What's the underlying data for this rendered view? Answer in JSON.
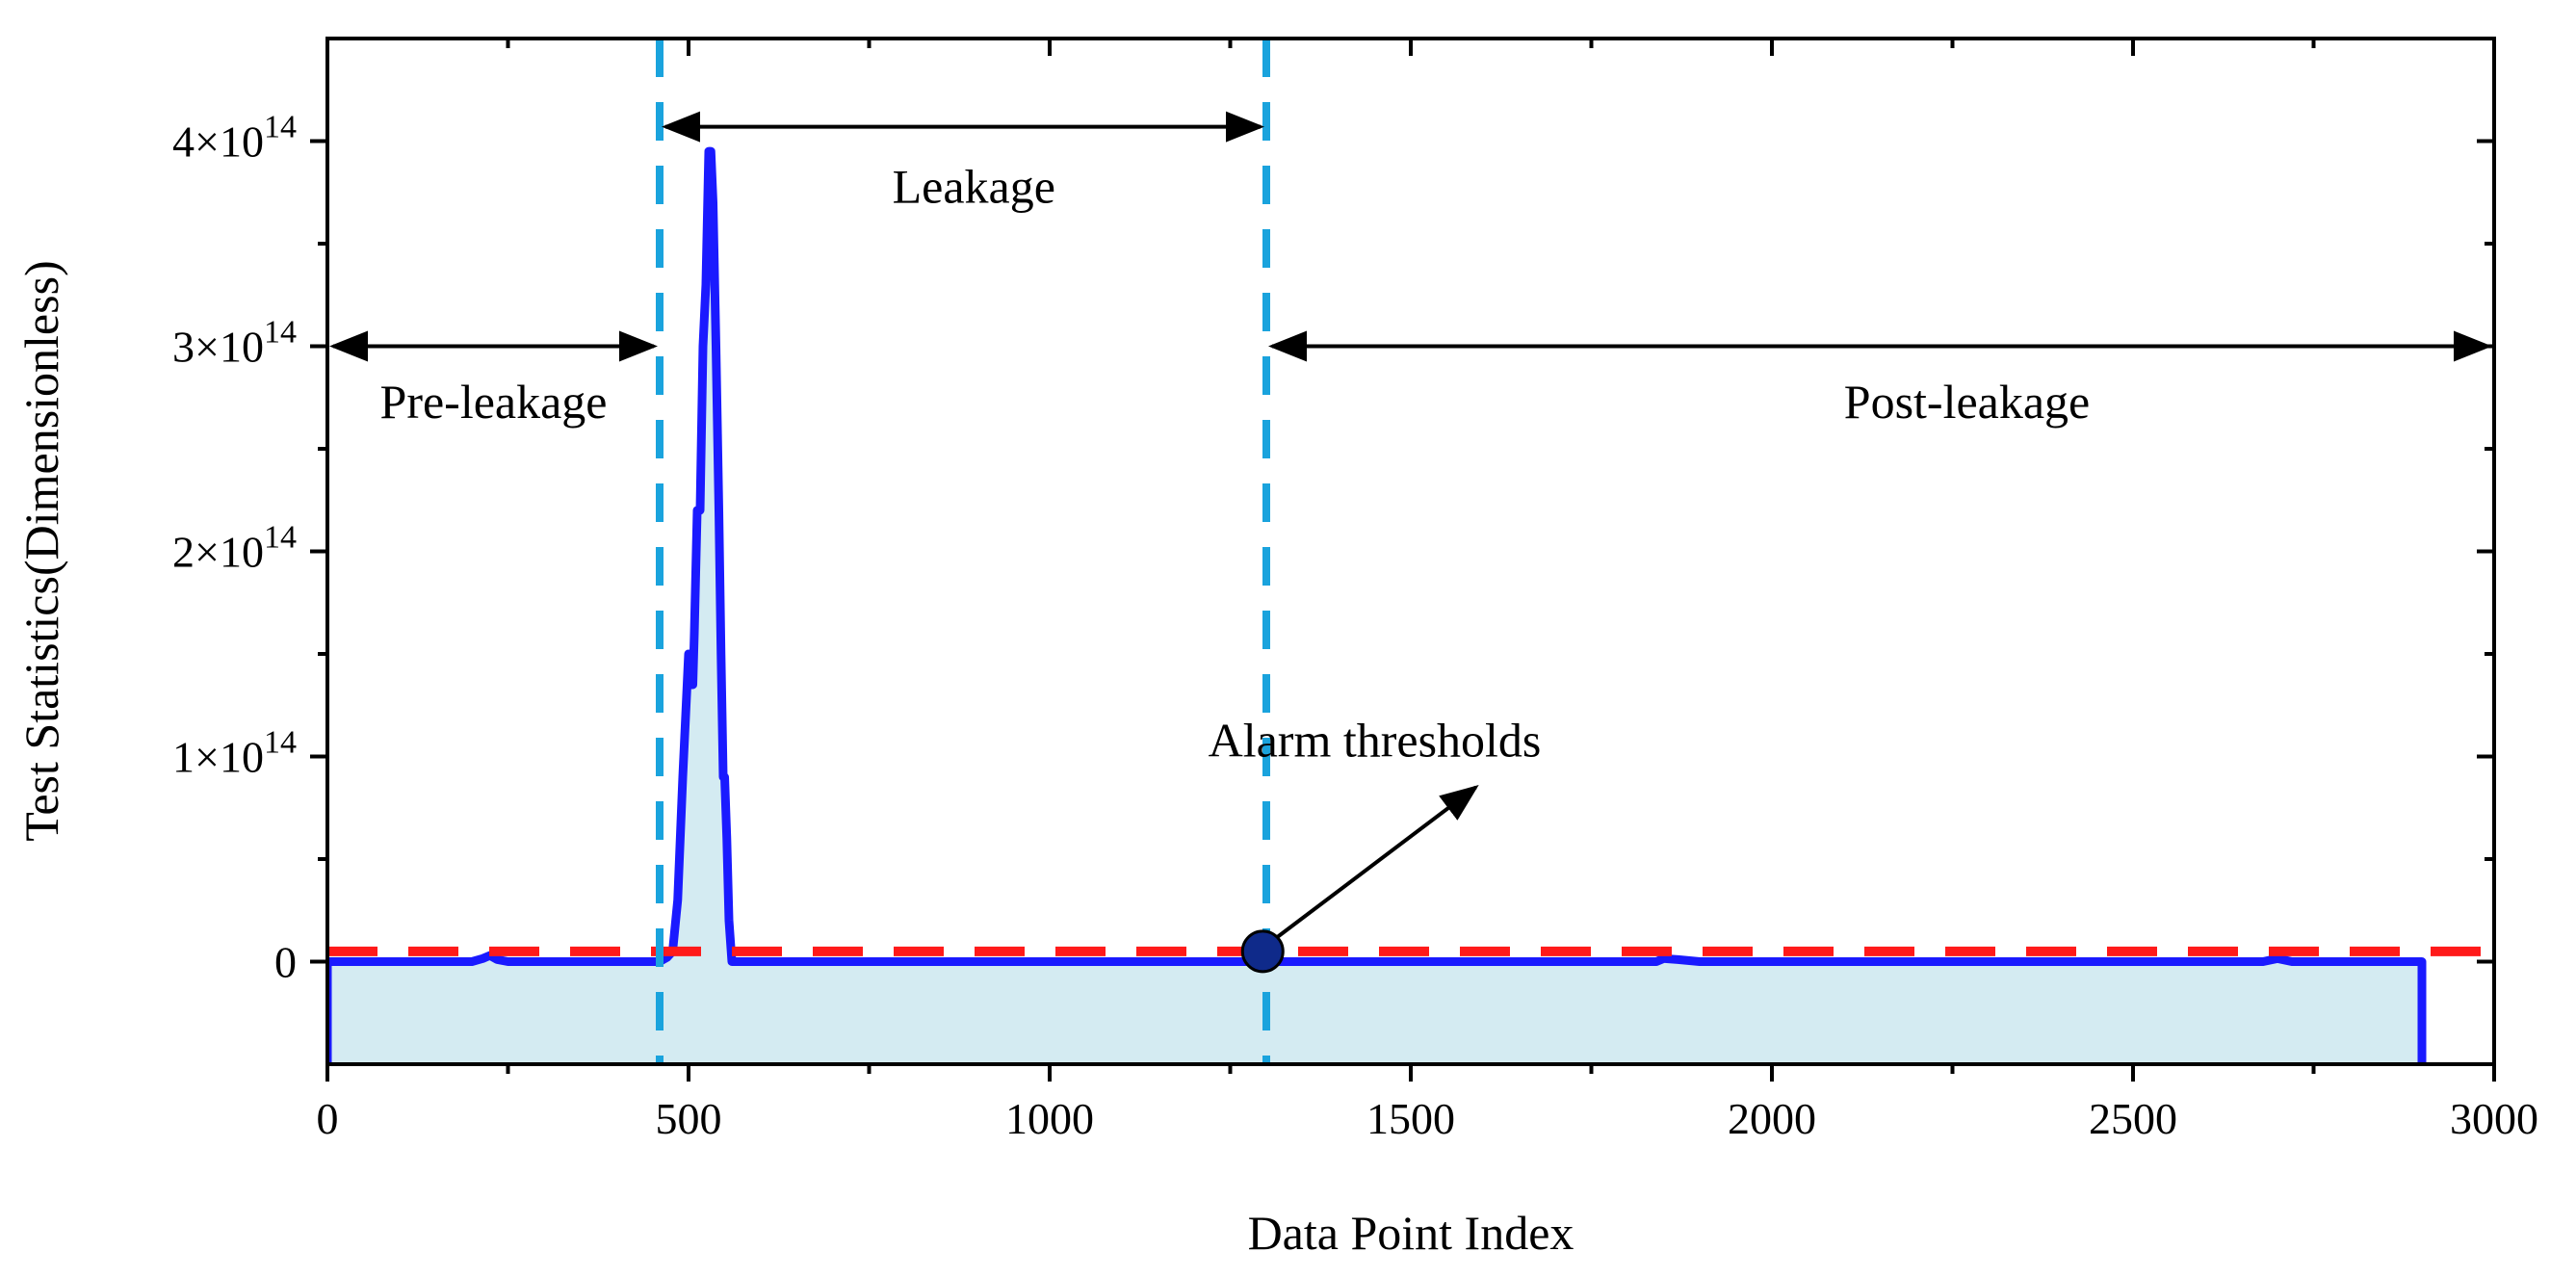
{
  "chart_data": {
    "type": "area",
    "xlabel": "Data Point Index",
    "ylabel": "Test Statistics(Dimensionless)",
    "xlim": [
      0,
      3000
    ],
    "ylim": [
      -50000000000000.0,
      450000000000000.0
    ],
    "x_ticks": [
      0,
      500,
      1000,
      1500,
      2000,
      2500,
      3000
    ],
    "x_tick_labels": [
      "0",
      "500",
      "1000",
      "1500",
      "2000",
      "2500",
      "3000"
    ],
    "y_ticks": [
      {
        "value": 0,
        "base": "0",
        "exp": ""
      },
      {
        "value": 100000000000000.0,
        "base": "1×10",
        "exp": "14"
      },
      {
        "value": 200000000000000.0,
        "base": "2×10",
        "exp": "14"
      },
      {
        "value": 300000000000000.0,
        "base": "3×10",
        "exp": "14"
      },
      {
        "value": 400000000000000.0,
        "base": "4×10",
        "exp": "14"
      }
    ],
    "colors": {
      "series": "#1a1aff",
      "fill": "#d4ebf2",
      "threshold": "#ff1a1a",
      "boundary": "#1aa3dd",
      "marker": "#0f2a8a"
    },
    "series": [
      {
        "x": [
          0,
          200,
          215,
          225,
          235,
          250,
          300,
          400,
          460,
          470,
          478,
          485,
          492,
          500,
          503,
          506,
          508,
          512,
          516,
          520,
          524,
          528,
          531,
          534,
          538,
          542,
          545,
          548,
          550,
          553,
          556,
          560,
          565,
          700,
          1000,
          1290,
          1300,
          1500,
          1800,
          1840,
          1850,
          1870,
          1900,
          2000,
          2300,
          2680,
          2700,
          2720,
          2900
        ],
        "y": [
          0,
          0,
          1500000000000.0,
          3000000000000.0,
          1000000000000.0,
          0,
          0,
          0,
          0,
          2000000000000.0,
          5000000000000.0,
          30000000000000.0,
          90000000000000.0,
          150000000000000.0,
          135000000000000.0,
          135000000000000.0,
          160000000000000.0,
          220000000000000.0,
          220000000000000.0,
          300000000000000.0,
          330000000000000.0,
          395000000000000.0,
          395000000000000.0,
          370000000000000.0,
          300000000000000.0,
          220000000000000.0,
          150000000000000.0,
          90000000000000.0,
          90000000000000.0,
          60000000000000.0,
          20000000000000.0,
          0,
          0,
          0,
          0,
          0,
          0,
          0,
          0,
          0,
          1500000000000.0,
          1000000000000.0,
          0,
          0,
          0,
          0,
          1500000000000.0,
          0,
          0
        ]
      }
    ],
    "threshold": {
      "y": 5000000000000.0
    },
    "boundaries": [
      460,
      1300
    ],
    "region_labels": [
      {
        "text": "Pre-leakage",
        "x_center": 230,
        "y_text": 265000000000000.0,
        "arrow": [
          0,
          460
        ],
        "arrow_y": 300000000000000.0
      },
      {
        "text": "Leakage",
        "x_center": 895,
        "y_text": 370000000000000.0,
        "arrow": [
          460,
          1300
        ],
        "arrow_y": 407000000000000.0
      },
      {
        "text": "Post-leakage",
        "x_center": 2270,
        "y_text": 265000000000000.0,
        "arrow": [
          1300,
          3000
        ],
        "arrow_y": 300000000000000.0
      }
    ],
    "alarm_annotation": {
      "text": "Alarm thresholds",
      "marker_x": 1295,
      "marker_y": 5000000000000.0,
      "arrow_tip_x": 1590,
      "arrow_tip_y": 85000000000000.0,
      "text_x": 1450,
      "text_y": 100000000000000.0
    }
  }
}
